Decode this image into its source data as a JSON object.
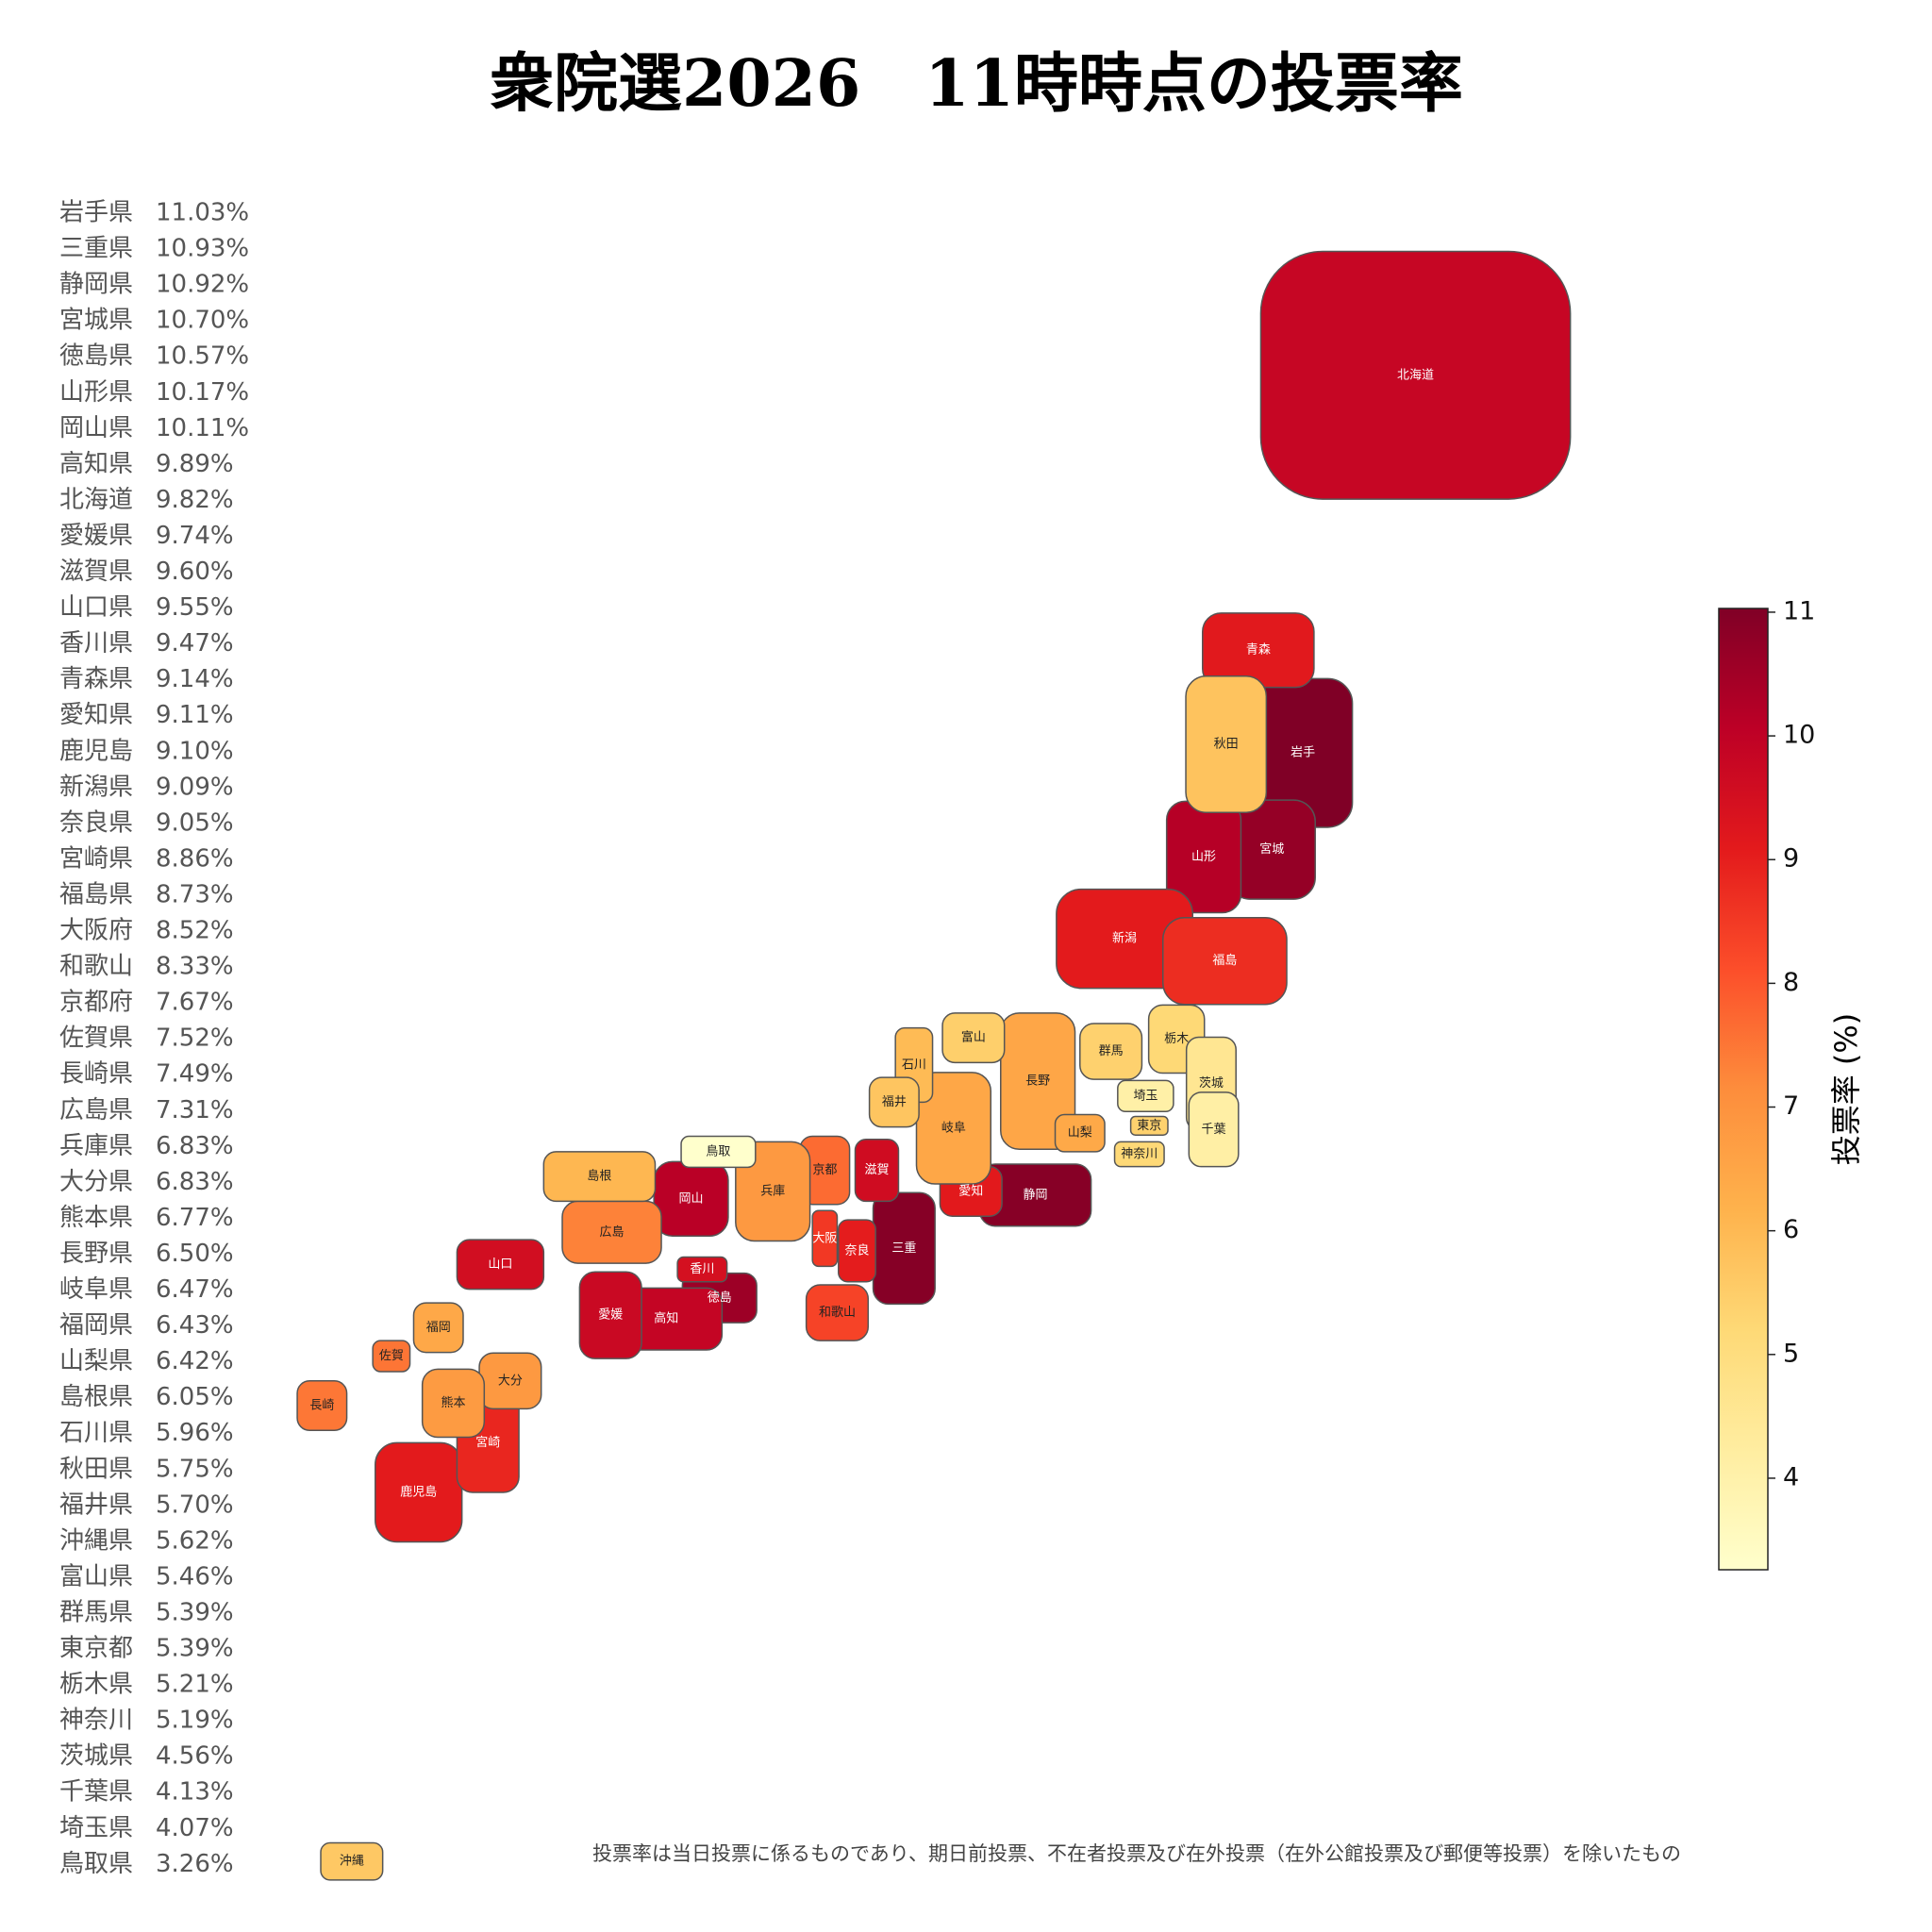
{
  "title": "衆院選2026　11時時点の投票率",
  "prefectures": [
    {
      "name": "岩手県",
      "short": "岩手",
      "value": 11.03,
      "label": "11.03%"
    },
    {
      "name": "三重県",
      "short": "三重",
      "value": 10.93,
      "label": "10.93%"
    },
    {
      "name": "静岡県",
      "short": "静岡",
      "value": 10.92,
      "label": "10.92%"
    },
    {
      "name": "宮城県",
      "short": "宮城",
      "value": 10.7,
      "label": "10.70%"
    },
    {
      "name": "徳島県",
      "short": "徳島",
      "value": 10.57,
      "label": "10.57%"
    },
    {
      "name": "山形県",
      "short": "山形",
      "value": 10.17,
      "label": "10.17%"
    },
    {
      "name": "岡山県",
      "short": "岡山",
      "value": 10.11,
      "label": "10.11%"
    },
    {
      "name": "高知県",
      "short": "高知",
      "value": 9.89,
      "label": "9.89%"
    },
    {
      "name": "北海道",
      "short": "北海道",
      "value": 9.82,
      "label": "9.82%"
    },
    {
      "name": "愛媛県",
      "short": "愛媛",
      "value": 9.74,
      "label": "9.74%"
    },
    {
      "name": "滋賀県",
      "short": "滋賀",
      "value": 9.6,
      "label": "9.60%"
    },
    {
      "name": "山口県",
      "short": "山口",
      "value": 9.55,
      "label": "9.55%"
    },
    {
      "name": "香川県",
      "short": "香川",
      "value": 9.47,
      "label": "9.47%"
    },
    {
      "name": "青森県",
      "short": "青森",
      "value": 9.14,
      "label": "9.14%"
    },
    {
      "name": "愛知県",
      "short": "愛知",
      "value": 9.11,
      "label": "9.11%"
    },
    {
      "name": "鹿児島",
      "short": "鹿児島",
      "value": 9.1,
      "label": "9.10%"
    },
    {
      "name": "新潟県",
      "short": "新潟",
      "value": 9.09,
      "label": "9.09%"
    },
    {
      "name": "奈良県",
      "short": "奈良",
      "value": 9.05,
      "label": "9.05%"
    },
    {
      "name": "宮崎県",
      "short": "宮崎",
      "value": 8.86,
      "label": "8.86%"
    },
    {
      "name": "福島県",
      "short": "福島",
      "value": 8.73,
      "label": "8.73%"
    },
    {
      "name": "大阪府",
      "short": "大阪",
      "value": 8.52,
      "label": "8.52%"
    },
    {
      "name": "和歌山",
      "short": "和歌山",
      "value": 8.33,
      "label": "8.33%"
    },
    {
      "name": "京都府",
      "short": "京都",
      "value": 7.67,
      "label": "7.67%"
    },
    {
      "name": "佐賀県",
      "short": "佐賀",
      "value": 7.52,
      "label": "7.52%"
    },
    {
      "name": "長崎県",
      "short": "長崎",
      "value": 7.49,
      "label": "7.49%"
    },
    {
      "name": "広島県",
      "short": "広島",
      "value": 7.31,
      "label": "7.31%"
    },
    {
      "name": "兵庫県",
      "short": "兵庫",
      "value": 6.83,
      "label": "6.83%"
    },
    {
      "name": "大分県",
      "short": "大分",
      "value": 6.83,
      "label": "6.83%"
    },
    {
      "name": "熊本県",
      "short": "熊本",
      "value": 6.77,
      "label": "6.77%"
    },
    {
      "name": "長野県",
      "short": "長野",
      "value": 6.5,
      "label": "6.50%"
    },
    {
      "name": "岐阜県",
      "short": "岐阜",
      "value": 6.47,
      "label": "6.47%"
    },
    {
      "name": "福岡県",
      "short": "福岡",
      "value": 6.43,
      "label": "6.43%"
    },
    {
      "name": "山梨県",
      "short": "山梨",
      "value": 6.42,
      "label": "6.42%"
    },
    {
      "name": "島根県",
      "short": "島根",
      "value": 6.05,
      "label": "6.05%"
    },
    {
      "name": "石川県",
      "short": "石川",
      "value": 5.96,
      "label": "5.96%"
    },
    {
      "name": "秋田県",
      "short": "秋田",
      "value": 5.75,
      "label": "5.75%"
    },
    {
      "name": "福井県",
      "short": "福井",
      "value": 5.7,
      "label": "5.70%"
    },
    {
      "name": "沖縄県",
      "short": "沖縄",
      "value": 5.62,
      "label": "5.62%"
    },
    {
      "name": "富山県",
      "short": "富山",
      "value": 5.46,
      "label": "5.46%"
    },
    {
      "name": "群馬県",
      "short": "群馬",
      "value": 5.39,
      "label": "5.39%"
    },
    {
      "name": "東京都",
      "short": "東京",
      "value": 5.39,
      "label": "5.39%"
    },
    {
      "name": "栃木県",
      "short": "栃木",
      "value": 5.21,
      "label": "5.21%"
    },
    {
      "name": "神奈川",
      "short": "神奈川",
      "value": 5.19,
      "label": "5.19%"
    },
    {
      "name": "茨城県",
      "short": "茨城",
      "value": 4.56,
      "label": "4.56%"
    },
    {
      "name": "千葉県",
      "short": "千葉",
      "value": 4.13,
      "label": "4.13%"
    },
    {
      "name": "埼玉県",
      "short": "埼玉",
      "value": 4.07,
      "label": "4.07%"
    },
    {
      "name": "鳥取県",
      "short": "鳥取",
      "value": 3.26,
      "label": "3.26%"
    }
  ],
  "colorbar": {
    "label": "投票率 (%)",
    "clim": [
      3.26,
      11.03
    ],
    "ticks": [
      4,
      5,
      6,
      7,
      8,
      9,
      10,
      11
    ],
    "colormap": [
      "#ffffcc",
      "#ffeda0",
      "#fed976",
      "#feb24c",
      "#fd8d3c",
      "#fc4e2a",
      "#e31a1c",
      "#bd0026",
      "#800026"
    ]
  },
  "note": "投票率は当日投票に係るものであり、期日前投票、不在者投票及び在外投票（在外公館投票及び郵便等投票）を除いたもの"
}
